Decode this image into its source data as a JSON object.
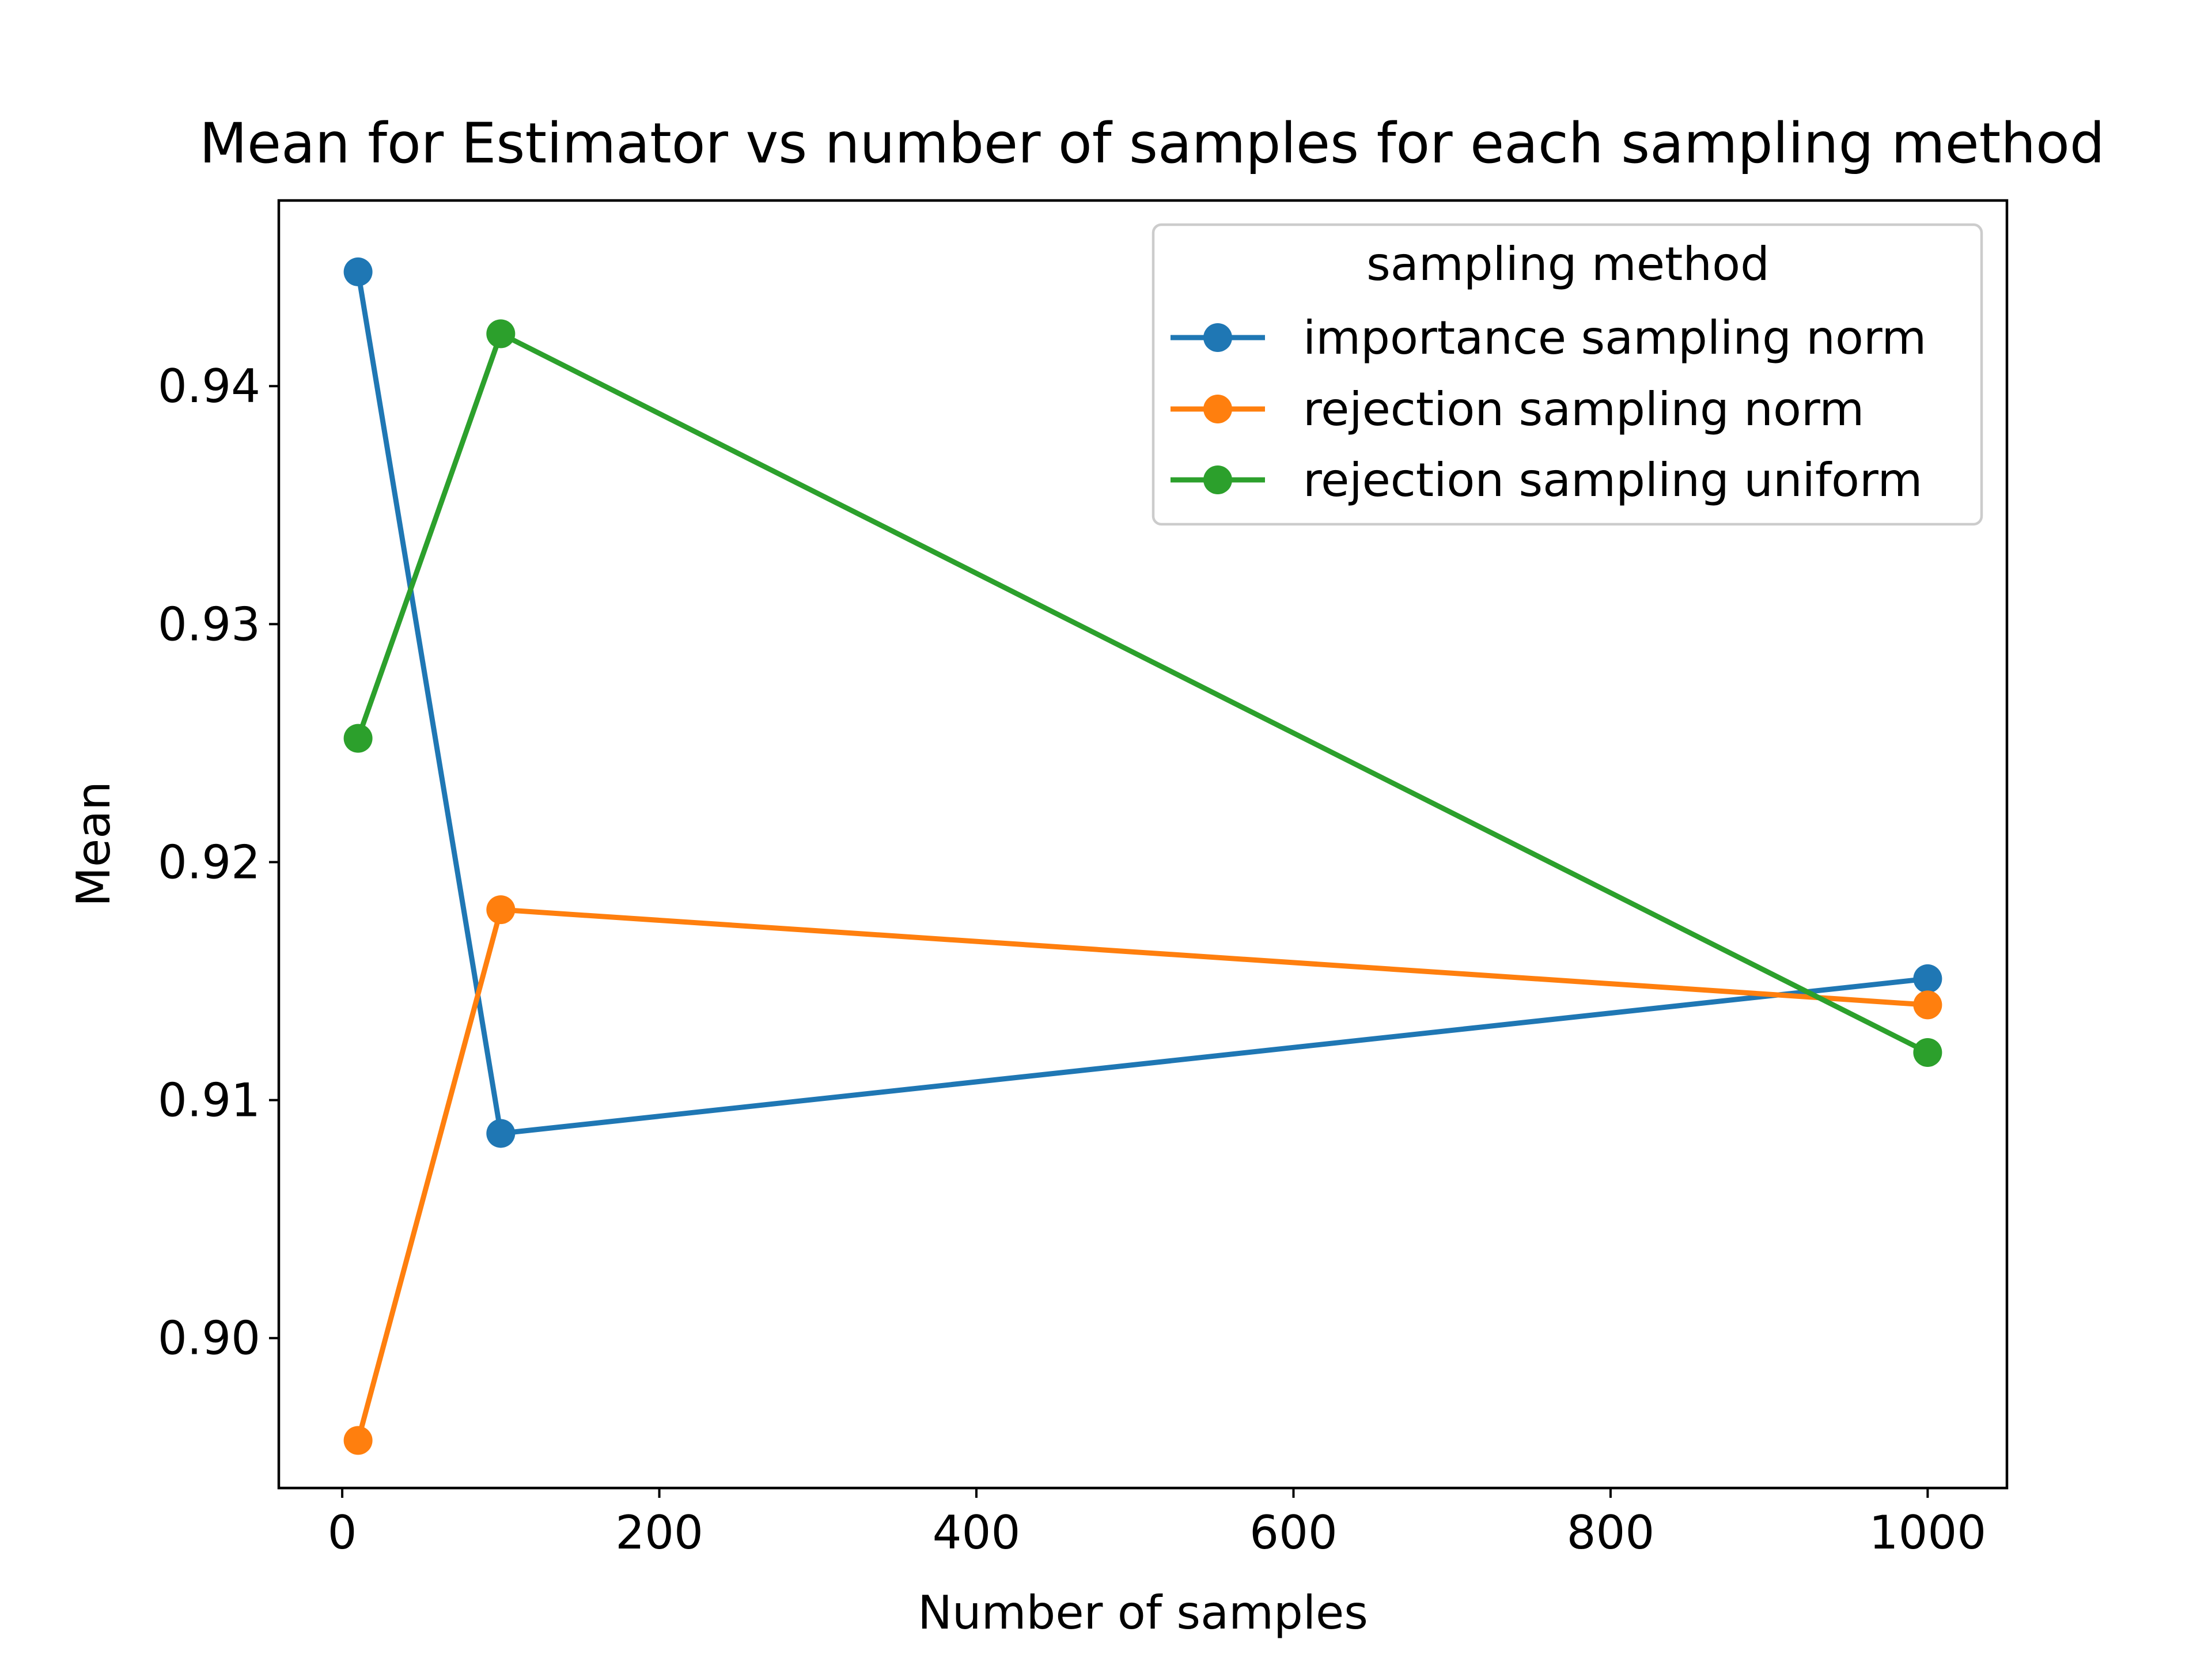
{
  "chart_data": {
    "type": "line",
    "title": "Mean for Estimator vs number of samples for each sampling method",
    "xlabel": "Number of samples",
    "ylabel": "Mean",
    "xlim": [
      -40,
      1050
    ],
    "ylim": [
      0.8937,
      0.9478
    ],
    "xticks": [
      0,
      200,
      400,
      600,
      800,
      1000
    ],
    "xtick_labels": [
      "0",
      "200",
      "400",
      "600",
      "800",
      "1000"
    ],
    "yticks": [
      0.9,
      0.91,
      0.92,
      0.93,
      0.94
    ],
    "ytick_labels": [
      "0.90",
      "0.91",
      "0.92",
      "0.93",
      "0.94"
    ],
    "grid": false,
    "legend": {
      "title": "sampling method",
      "placement": "upper right"
    },
    "x": [
      10,
      100,
      1000
    ],
    "series": [
      {
        "name": "importance sampling norm",
        "color": "#1f77b4",
        "marker": "circle",
        "values": [
          0.9448,
          0.9086,
          0.9151
        ]
      },
      {
        "name": "rejection sampling norm",
        "color": "#ff7f0e",
        "marker": "circle",
        "values": [
          0.8957,
          0.918,
          0.914
        ]
      },
      {
        "name": "rejection sampling uniform",
        "color": "#2ca02c",
        "marker": "circle",
        "values": [
          0.9252,
          0.9422,
          0.912
        ]
      }
    ]
  }
}
